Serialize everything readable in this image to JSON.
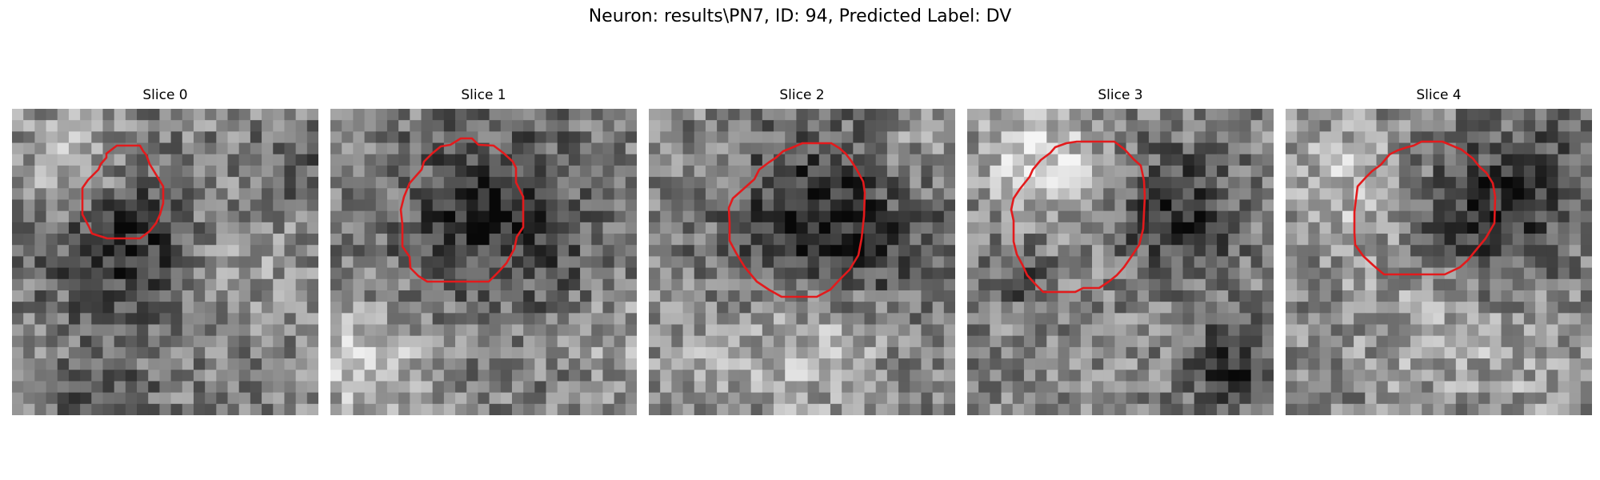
{
  "figure": {
    "title": "Neuron: results\\PN7, ID: 94, Predicted Label: DV"
  },
  "colors": {
    "background": "#ffffff",
    "contour": "#e31a1c",
    "colormap": "gray"
  },
  "slices": [
    {
      "title": "Slice 0",
      "seed": 11,
      "dark_region": "upper-left nucleus",
      "bright_region": "upper-left"
    },
    {
      "title": "Slice 1",
      "seed": 23,
      "dark_region": "upper half of contour",
      "bright_region": "bottom-left"
    },
    {
      "title": "Slice 2",
      "seed": 37,
      "dark_region": "upper half of contour",
      "bright_region": "lower half of contour"
    },
    {
      "title": "Slice 3",
      "seed": 51,
      "dark_region": "upper-right of contour",
      "bright_region": "upper-left corner"
    },
    {
      "title": "Slice 4",
      "seed": 67,
      "dark_region": "right side of contour",
      "bright_region": "top-left"
    }
  ]
}
